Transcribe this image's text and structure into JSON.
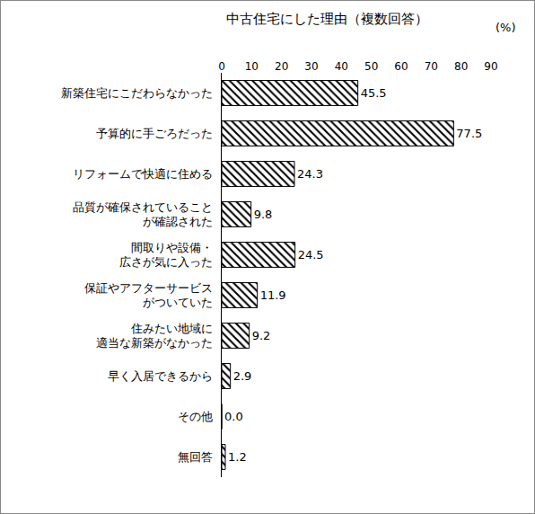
{
  "chart_data": {
    "type": "bar",
    "orientation": "horizontal",
    "title": "中古住宅にした理由（複数回答）",
    "annotations": [
      "(%)"
    ],
    "categories": [
      "新築住宅にこだわらなかった",
      "予算的に手ごろだった",
      "リフォームで快適に住める",
      "品質が確保されていること\nが確認された",
      "間取りや設備・\n広さが気に入った",
      "保証やアフターサービス\nがついていた",
      "住みたい地域に\n適当な新築がなかった",
      "早く入居できるから",
      "その他",
      "無回答"
    ],
    "values": [
      45.5,
      77.5,
      24.3,
      9.8,
      24.5,
      11.9,
      9.2,
      2.9,
      0.0,
      1.2
    ],
    "value_labels": [
      "45.5",
      "77.5",
      "24.3",
      "9.8",
      "24.5",
      "11.9",
      "9.2",
      "2.9",
      "0.0",
      "1.2"
    ],
    "data_labels": true,
    "color": "#000000",
    "xlim": [
      0,
      90
    ],
    "xticks": [
      0,
      10,
      20,
      30,
      40,
      50,
      60,
      70,
      80,
      90
    ],
    "grid": false
  }
}
